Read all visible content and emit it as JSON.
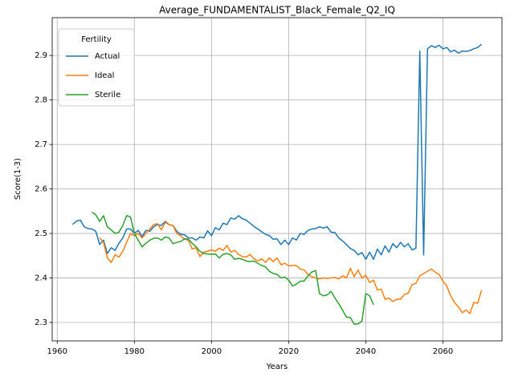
{
  "chart_data": {
    "type": "line",
    "title": "Average_FUNDAMENTALIST_Black_Female_Q2_IQ",
    "xlabel": "Years",
    "ylabel": "Score(1-3)",
    "xlim": [
      1958.7,
      2075.3
    ],
    "ylim": [
      2.2586,
      2.985
    ],
    "xticks": [
      1960,
      1980,
      2000,
      2020,
      2040,
      2060
    ],
    "yticks": [
      2.3,
      2.4,
      2.5,
      2.6,
      2.7,
      2.8,
      2.9
    ],
    "grid": true,
    "legend": {
      "title": "Fertility",
      "loc": "upper left"
    },
    "series": [
      {
        "name": "Actual",
        "color": "#1f77b4",
        "x": [
          1964,
          1965,
          1966,
          1967,
          1968,
          1969,
          1970,
          1971,
          1972,
          1973,
          1974,
          1975,
          1976,
          1977,
          1978,
          1979,
          1980,
          1981,
          1982,
          1983,
          1984,
          1985,
          1986,
          1987,
          1988,
          1989,
          1990,
          1991,
          1992,
          1993,
          1994,
          1995,
          1996,
          1997,
          1998,
          1999,
          2000,
          2001,
          2002,
          2003,
          2004,
          2005,
          2006,
          2007,
          2008,
          2009,
          2010,
          2011,
          2012,
          2013,
          2014,
          2015,
          2016,
          2017,
          2018,
          2019,
          2020,
          2021,
          2022,
          2023,
          2024,
          2025,
          2026,
          2027,
          2028,
          2029,
          2030,
          2031,
          2032,
          2033,
          2034,
          2035,
          2036,
          2037,
          2038,
          2039,
          2040,
          2041,
          2042,
          2043,
          2044,
          2045,
          2046,
          2047,
          2048,
          2049,
          2050,
          2051,
          2052,
          2053,
          2054,
          2055,
          2056,
          2057,
          2058,
          2059,
          2060,
          2061,
          2062,
          2063,
          2064,
          2065,
          2066,
          2067,
          2068,
          2069,
          2070
        ],
        "values": [
          2.52,
          2.528,
          2.53,
          2.515,
          2.511,
          2.51,
          2.505,
          2.475,
          2.485,
          2.455,
          2.468,
          2.462,
          2.478,
          2.49,
          2.51,
          2.51,
          2.5,
          2.507,
          2.493,
          2.507,
          2.505,
          2.515,
          2.52,
          2.518,
          2.527,
          2.52,
          2.518,
          2.505,
          2.498,
          2.497,
          2.49,
          2.49,
          2.485,
          2.492,
          2.49,
          2.506,
          2.495,
          2.513,
          2.508,
          2.523,
          2.52,
          2.535,
          2.532,
          2.54,
          2.533,
          2.53,
          2.523,
          2.516,
          2.51,
          2.504,
          2.498,
          2.495,
          2.487,
          2.488,
          2.475,
          2.485,
          2.475,
          2.49,
          2.485,
          2.5,
          2.498,
          2.507,
          2.51,
          2.511,
          2.515,
          2.512,
          2.515,
          2.503,
          2.502,
          2.49,
          2.483,
          2.475,
          2.466,
          2.462,
          2.452,
          2.457,
          2.442,
          2.458,
          2.442,
          2.465,
          2.452,
          2.472,
          2.458,
          2.477,
          2.468,
          2.48,
          2.47,
          2.477,
          2.463,
          2.467,
          2.91,
          2.452,
          2.915,
          2.922,
          2.918,
          2.923,
          2.915,
          2.918,
          2.908,
          2.912,
          2.905,
          2.91,
          2.909,
          2.911,
          2.915,
          2.918,
          2.925
        ]
      },
      {
        "name": "Ideal",
        "color": "#ff7f0e",
        "x": [
          1971,
          1972,
          1973,
          1974,
          1975,
          1976,
          1977,
          1978,
          1979,
          1980,
          1981,
          1982,
          1983,
          1984,
          1985,
          1986,
          1987,
          1988,
          1989,
          1990,
          1991,
          1992,
          1993,
          1994,
          1995,
          1996,
          1997,
          1998,
          1999,
          2000,
          2001,
          2002,
          2003,
          2004,
          2005,
          2006,
          2007,
          2008,
          2009,
          2010,
          2011,
          2012,
          2013,
          2014,
          2015,
          2016,
          2017,
          2018,
          2019,
          2020,
          2021,
          2022,
          2023,
          2024,
          2025,
          2026,
          2027,
          2028,
          2029,
          2030,
          2031,
          2032,
          2033,
          2034,
          2035,
          2036,
          2037,
          2038,
          2039,
          2040,
          2041,
          2042,
          2043,
          2044,
          2045,
          2046,
          2047,
          2048,
          2049,
          2050,
          2051,
          2052,
          2053,
          2054,
          2055,
          2056,
          2057,
          2058,
          2059,
          2060,
          2061,
          2062,
          2063,
          2064,
          2065,
          2066,
          2067,
          2068,
          2069,
          2070
        ],
        "values": [
          2.49,
          2.48,
          2.445,
          2.435,
          2.452,
          2.447,
          2.46,
          2.48,
          2.5,
          2.495,
          2.5,
          2.49,
          2.5,
          2.51,
          2.52,
          2.522,
          2.508,
          2.525,
          2.52,
          2.518,
          2.5,
          2.495,
          2.487,
          2.485,
          2.465,
          2.468,
          2.448,
          2.458,
          2.46,
          2.463,
          2.46,
          2.467,
          2.462,
          2.473,
          2.458,
          2.462,
          2.453,
          2.448,
          2.447,
          2.453,
          2.443,
          2.438,
          2.443,
          2.435,
          2.445,
          2.437,
          2.445,
          2.43,
          2.433,
          2.427,
          2.428,
          2.428,
          2.42,
          2.418,
          2.408,
          2.403,
          2.4,
          2.398,
          2.4,
          2.399,
          2.4,
          2.401,
          2.398,
          2.405,
          2.4,
          2.422,
          2.403,
          2.418,
          2.4,
          2.406,
          2.39,
          2.395,
          2.373,
          2.375,
          2.352,
          2.355,
          2.347,
          2.352,
          2.352,
          2.363,
          2.366,
          2.385,
          2.388,
          2.405,
          2.41,
          2.415,
          2.42,
          2.413,
          2.408,
          2.393,
          2.382,
          2.36,
          2.345,
          2.335,
          2.322,
          2.328,
          2.32,
          2.345,
          2.343,
          2.372
        ]
      },
      {
        "name": "Sterile",
        "color": "#2ca02c",
        "x": [
          1969,
          1970,
          1971,
          1972,
          1973,
          1974,
          1975,
          1976,
          1977,
          1978,
          1979,
          1980,
          1981,
          1982,
          1983,
          1984,
          1985,
          1986,
          1987,
          1988,
          1989,
          1990,
          1991,
          1992,
          1993,
          1994,
          1995,
          1996,
          1997,
          1998,
          1999,
          2000,
          2001,
          2002,
          2003,
          2004,
          2005,
          2006,
          2007,
          2008,
          2009,
          2010,
          2011,
          2012,
          2013,
          2014,
          2015,
          2016,
          2017,
          2018,
          2019,
          2020,
          2021,
          2022,
          2023,
          2024,
          2025,
          2026,
          2027,
          2028,
          2029,
          2030,
          2031,
          2032,
          2033,
          2034,
          2035,
          2036,
          2037,
          2038,
          2039,
          2040,
          2041,
          2042
        ],
        "values": [
          2.548,
          2.542,
          2.527,
          2.54,
          2.515,
          2.508,
          2.5,
          2.503,
          2.518,
          2.54,
          2.537,
          2.5,
          2.485,
          2.47,
          2.478,
          2.485,
          2.489,
          2.49,
          2.485,
          2.492,
          2.49,
          2.477,
          2.48,
          2.482,
          2.488,
          2.487,
          2.478,
          2.47,
          2.46,
          2.455,
          2.454,
          2.453,
          2.454,
          2.445,
          2.453,
          2.455,
          2.452,
          2.442,
          2.444,
          2.442,
          2.438,
          2.437,
          2.438,
          2.433,
          2.428,
          2.425,
          2.415,
          2.41,
          2.408,
          2.4,
          2.402,
          2.395,
          2.382,
          2.386,
          2.393,
          2.393,
          2.405,
          2.413,
          2.417,
          2.365,
          2.36,
          2.362,
          2.37,
          2.355,
          2.342,
          2.327,
          2.312,
          2.311,
          2.296,
          2.297,
          2.303,
          2.365,
          2.36,
          2.34
        ]
      }
    ]
  }
}
